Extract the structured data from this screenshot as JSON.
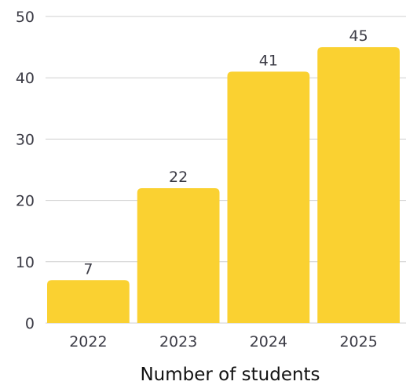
{
  "chart_data": {
    "type": "bar",
    "categories": [
      "2022",
      "2023",
      "2024",
      "2025"
    ],
    "values": [
      7,
      22,
      41,
      45
    ],
    "data_labels": [
      "7",
      "22",
      "41",
      "45"
    ],
    "title": "",
    "xlabel": "Number of students",
    "ylabel": "",
    "ylim": [
      0,
      50
    ],
    "yticks": [
      "0",
      "10",
      "20",
      "30",
      "40",
      "50"
    ],
    "grid": true,
    "legend": "none",
    "bar_color": "#FAD131"
  }
}
